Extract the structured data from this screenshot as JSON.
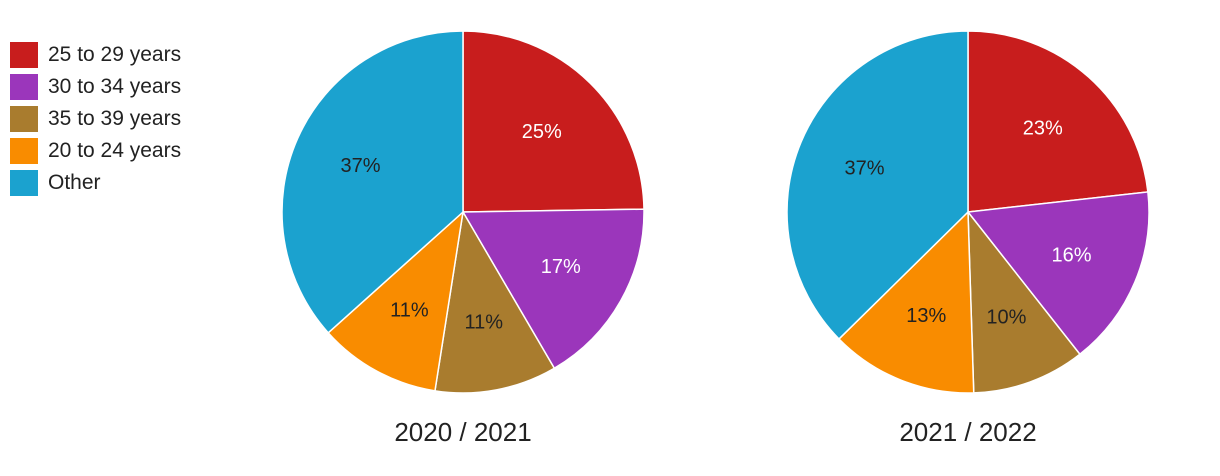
{
  "chart_data": {
    "type": "pie",
    "legend_position": "top-left",
    "categories": [
      "25 to 29 years",
      "30 to 34 years",
      "35 to 39 years",
      "20 to 24 years",
      "Other"
    ],
    "colors": {
      "25 to 29 years": "#c81d1d",
      "30 to 34 years": "#9b36bb",
      "35 to 39 years": "#a97c2e",
      "20 to 24 years": "#f98c00",
      "Other": "#1ba2cf"
    },
    "label_colors": {
      "25 to 29 years": "#ffffff",
      "30 to 34 years": "#ffffff",
      "35 to 39 years": "#222222",
      "20 to 24 years": "#222222",
      "Other": "#222222"
    },
    "pies": [
      {
        "title": "2020 / 2021",
        "values": [
          25,
          17,
          11,
          11,
          37
        ],
        "labels": [
          "25%",
          "17%",
          "11%",
          "11%",
          "37%"
        ]
      },
      {
        "title": "2021 / 2022",
        "values": [
          23,
          16,
          10,
          13,
          37
        ],
        "labels": [
          "23%",
          "16%",
          "10%",
          "13%",
          "37%"
        ]
      }
    ]
  }
}
